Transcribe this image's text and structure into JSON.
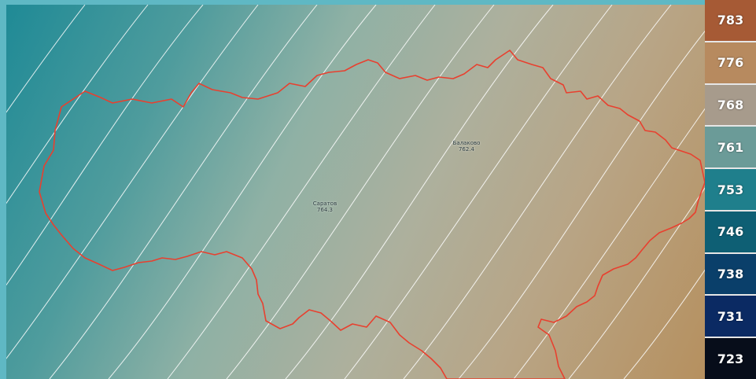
{
  "colors": {
    "border": "#e8402f",
    "isobar": "#ffffff"
  },
  "cities": [
    {
      "name": "Саратов",
      "value": "764.3"
    },
    {
      "name": "Балаково",
      "value": "762.4"
    }
  ],
  "legend": {
    "items": [
      {
        "label": "783",
        "color": "#a65a35"
      },
      {
        "label": "776",
        "color": "#b78a5f"
      },
      {
        "label": "768",
        "color": "#a79b8c"
      },
      {
        "label": "761",
        "color": "#6b9b98"
      },
      {
        "label": "753",
        "color": "#1f7f8c"
      },
      {
        "label": "746",
        "color": "#0e5f74"
      },
      {
        "label": "738",
        "color": "#0a3f6a"
      },
      {
        "label": "731",
        "color": "#0b2a63"
      },
      {
        "label": "723",
        "color": "#070d1a"
      }
    ]
  }
}
